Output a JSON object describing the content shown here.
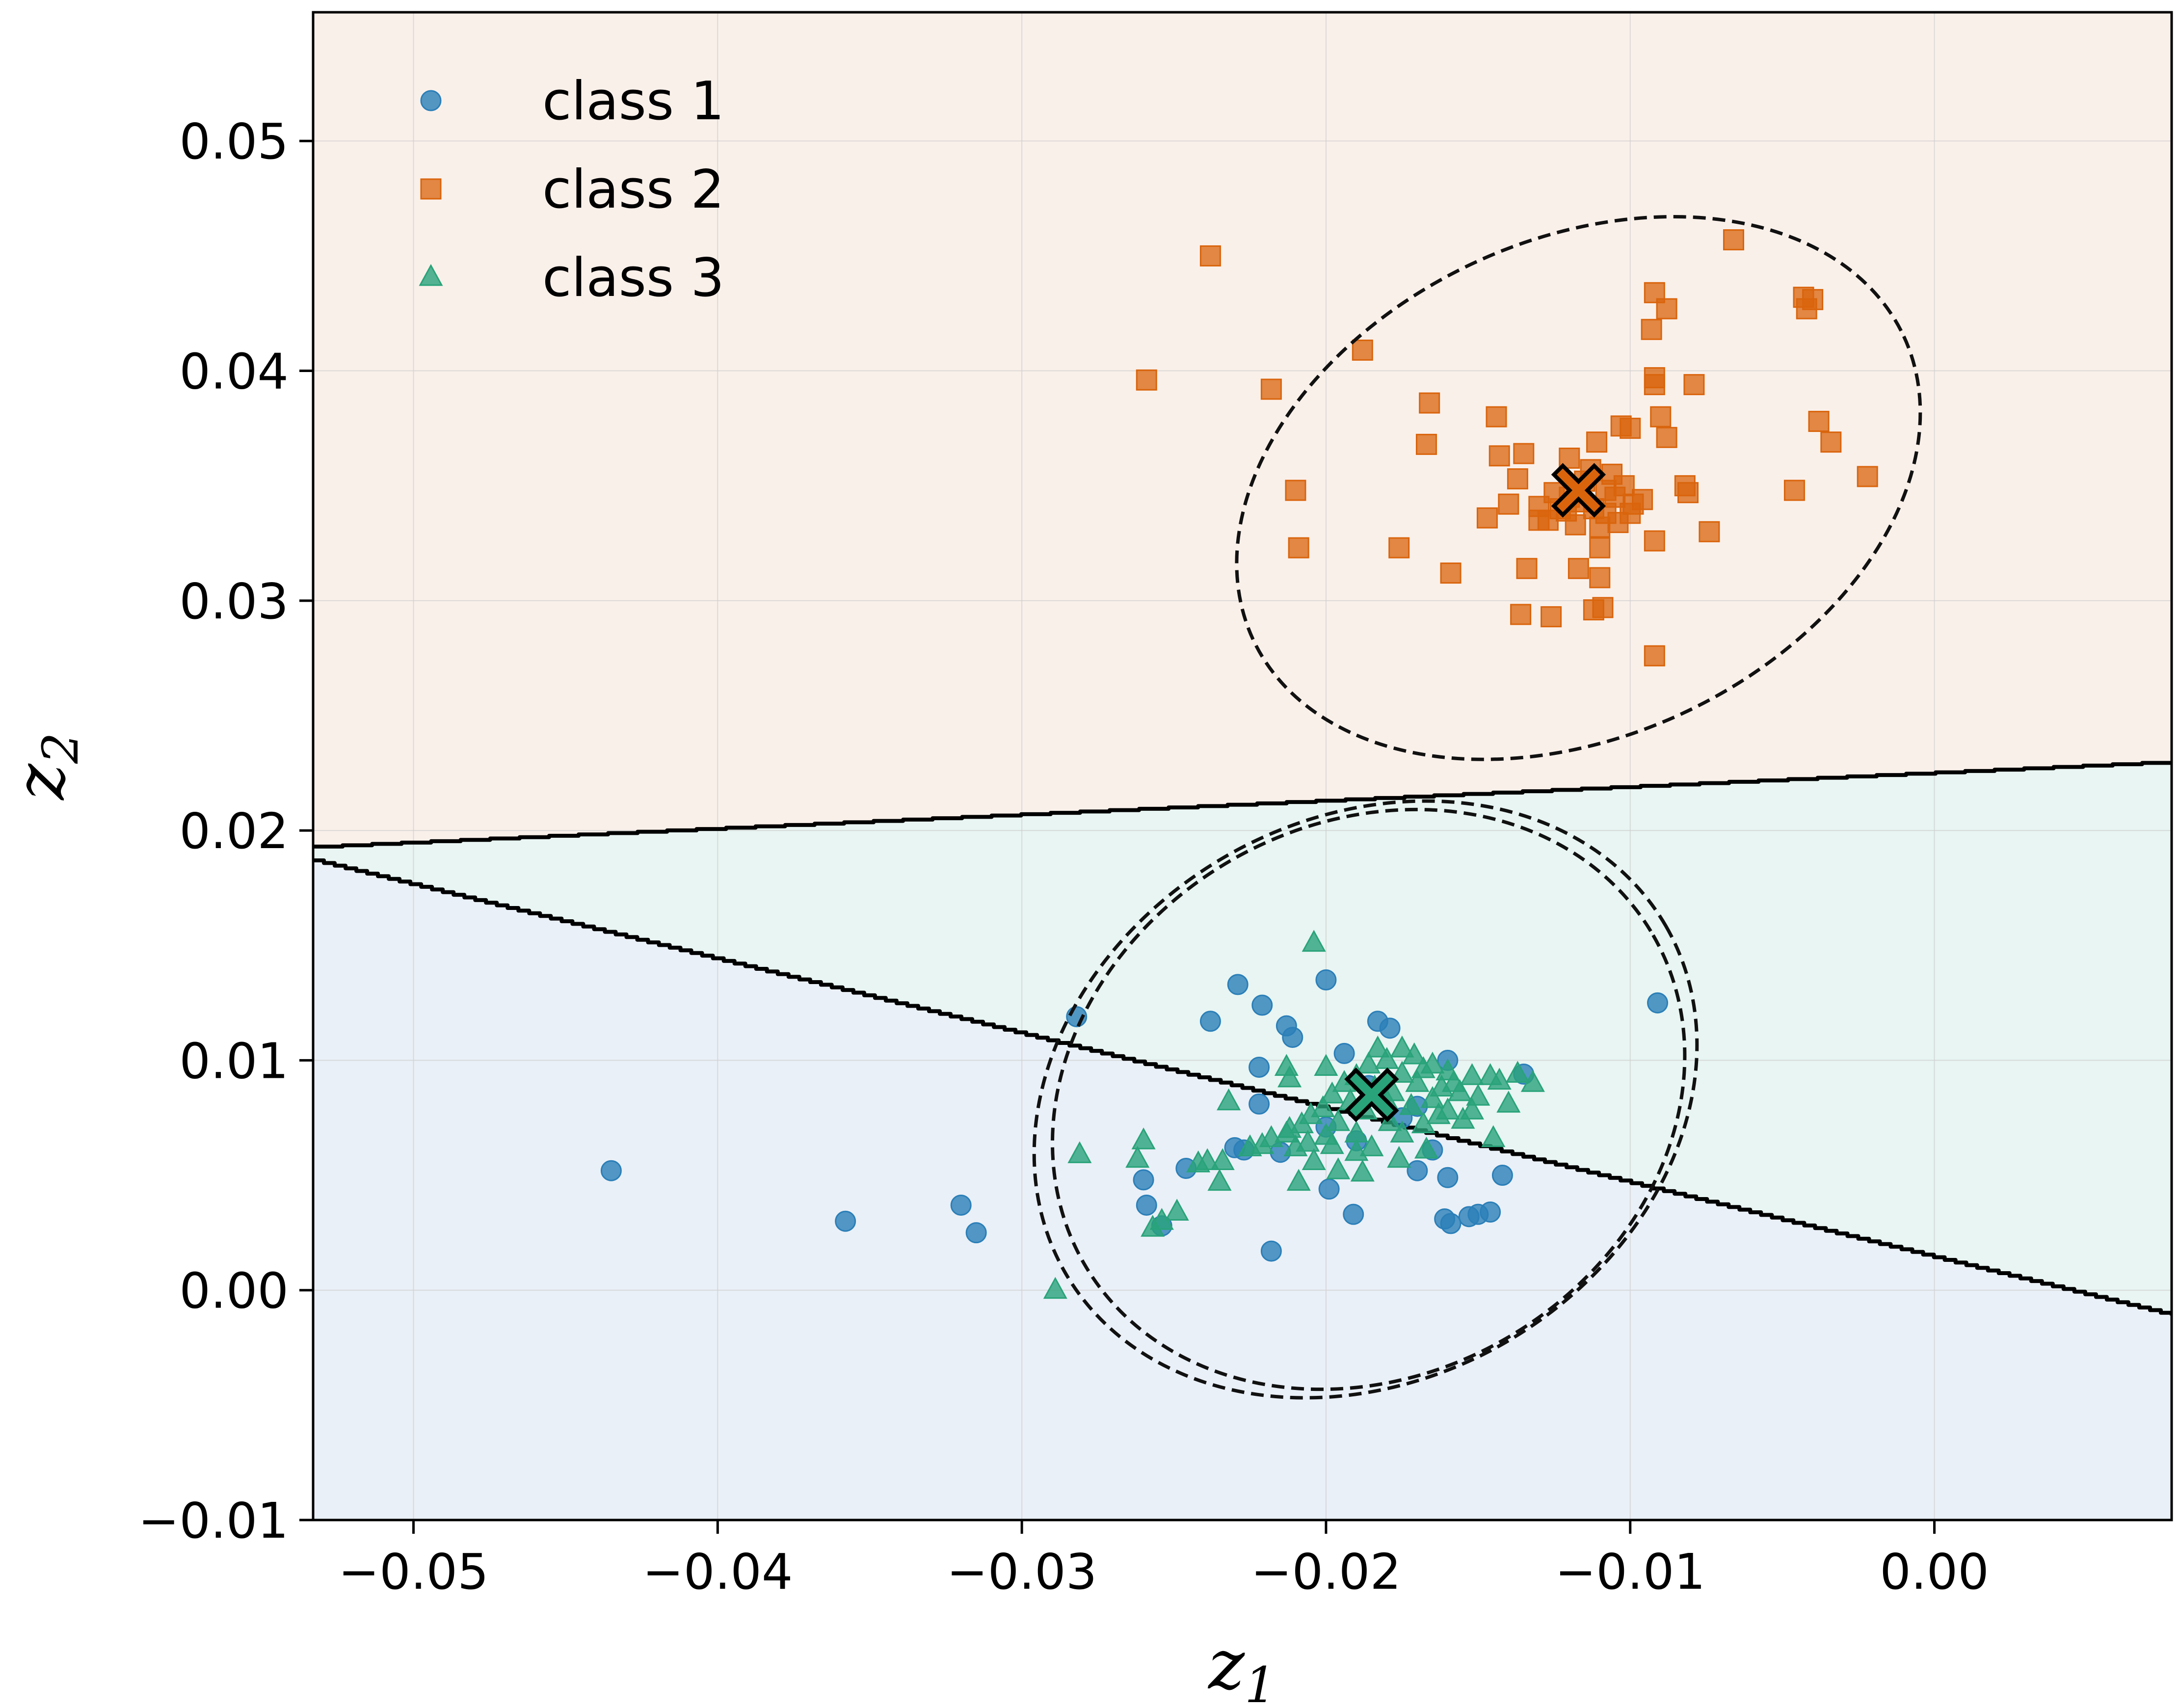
{
  "chart_data": {
    "type": "scatter",
    "title": "",
    "xlabel": {
      "base": "z",
      "sub": "1"
    },
    "ylabel": {
      "base": "z",
      "sub": "2"
    },
    "xlim": [
      -0.0533,
      0.0078
    ],
    "ylim": [
      -0.01,
      0.0556
    ],
    "xticks": [
      -0.05,
      -0.04,
      -0.03,
      -0.02,
      -0.01,
      0.0
    ],
    "xtick_labels": [
      "−0.05",
      "−0.04",
      "−0.03",
      "−0.02",
      "−0.01",
      "0.00"
    ],
    "yticks": [
      -0.01,
      0.0,
      0.01,
      0.02,
      0.03,
      0.04,
      0.05
    ],
    "ytick_labels": [
      "−0.01",
      "0.00",
      "0.01",
      "0.02",
      "0.03",
      "0.04",
      "0.05"
    ],
    "grid": true,
    "legend_position": "top-left",
    "colors": {
      "class1": "#2b7fb8",
      "class2": "#d9640c",
      "class3": "#29a37a",
      "region_class1": "#eaf0f7",
      "region_class2": "#faf0ea",
      "region_class3": "#e8f5f2",
      "boundary": "#000000"
    },
    "decision_regions": {
      "upper_boundary": {
        "x": [
          -0.0533,
          0.0078
        ],
        "y": [
          0.0193,
          0.023
        ]
      },
      "lower_boundary": {
        "x": [
          -0.0533,
          0.0078
        ],
        "y": [
          0.0187,
          -0.0011
        ]
      },
      "above_upper": "class 2",
      "between": "class 3",
      "below_lower": "class 1"
    },
    "ellipses": [
      {
        "class": "class 2",
        "cx": -0.0117,
        "cy": 0.0349,
        "rx": 0.0118,
        "ry": 0.0108,
        "angle_deg": -25
      },
      {
        "class": "class 1",
        "cx": -0.0187,
        "cy": 0.0083,
        "rx": 0.0114,
        "ry": 0.0122,
        "angle_deg": -30
      },
      {
        "class": "class 3",
        "cx": -0.0186,
        "cy": 0.0083,
        "rx": 0.0108,
        "ry": 0.012,
        "angle_deg": -30
      }
    ],
    "centroids": [
      {
        "class": "class 2",
        "x": -0.0117,
        "y": 0.0348
      },
      {
        "class": "class 3",
        "x": -0.0185,
        "y": 0.0085
      }
    ],
    "series": [
      {
        "name": "class 1",
        "marker": "circle",
        "points": [
          [
            -0.0435,
            0.0052
          ],
          [
            -0.0358,
            0.003
          ],
          [
            -0.032,
            0.0037
          ],
          [
            -0.0315,
            0.0025
          ],
          [
            -0.0282,
            0.0119
          ],
          [
            -0.026,
            0.0048
          ],
          [
            -0.0259,
            0.0037
          ],
          [
            -0.0254,
            0.0028
          ],
          [
            -0.0246,
            0.0053
          ],
          [
            -0.0238,
            0.0117
          ],
          [
            -0.0229,
            0.0133
          ],
          [
            -0.0221,
            0.0124
          ],
          [
            -0.0213,
            0.0115
          ],
          [
            -0.0211,
            0.011
          ],
          [
            -0.02,
            0.0135
          ],
          [
            -0.0194,
            0.0103
          ],
          [
            -0.0183,
            0.0117
          ],
          [
            -0.0179,
            0.0114
          ],
          [
            -0.016,
            0.01
          ],
          [
            -0.0135,
            0.0094
          ],
          [
            -0.0091,
            0.0125
          ],
          [
            -0.0218,
            0.0017
          ],
          [
            -0.0191,
            0.0033
          ],
          [
            -0.0199,
            0.0044
          ],
          [
            -0.0161,
            0.0031
          ],
          [
            -0.0159,
            0.0029
          ],
          [
            -0.0153,
            0.0032
          ],
          [
            -0.015,
            0.0033
          ],
          [
            -0.0146,
            0.0034
          ],
          [
            -0.0142,
            0.005
          ],
          [
            -0.016,
            0.0049
          ],
          [
            -0.017,
            0.0052
          ],
          [
            -0.0165,
            0.0061
          ],
          [
            -0.0222,
            0.0097
          ],
          [
            -0.0222,
            0.0081
          ],
          [
            -0.023,
            0.0062
          ],
          [
            -0.0227,
            0.0061
          ],
          [
            -0.0215,
            0.006
          ],
          [
            -0.02,
            0.0071
          ],
          [
            -0.0175,
            0.0075
          ],
          [
            -0.0186,
            0.0089
          ],
          [
            -0.017,
            0.008
          ],
          [
            -0.019,
            0.0065
          ]
        ]
      },
      {
        "name": "class 2",
        "marker": "square",
        "points": [
          [
            -0.0238,
            0.045
          ],
          [
            -0.0259,
            0.0396
          ],
          [
            -0.0218,
            0.0392
          ],
          [
            -0.0188,
            0.0409
          ],
          [
            -0.0066,
            0.0457
          ],
          [
            -0.0092,
            0.0434
          ],
          [
            -0.0088,
            0.0427
          ],
          [
            -0.0093,
            0.0418
          ],
          [
            -0.0043,
            0.0432
          ],
          [
            -0.004,
            0.0431
          ],
          [
            -0.0042,
            0.0427
          ],
          [
            -0.0092,
            0.0397
          ],
          [
            -0.0092,
            0.0394
          ],
          [
            -0.0079,
            0.0394
          ],
          [
            -0.0166,
            0.0386
          ],
          [
            -0.0144,
            0.038
          ],
          [
            -0.009,
            0.038
          ],
          [
            -0.0038,
            0.0378
          ],
          [
            -0.0034,
            0.0369
          ],
          [
            -0.0103,
            0.0376
          ],
          [
            -0.01,
            0.0375
          ],
          [
            -0.0111,
            0.0369
          ],
          [
            -0.0088,
            0.0371
          ],
          [
            -0.0167,
            0.0368
          ],
          [
            -0.0135,
            0.0364
          ],
          [
            -0.0143,
            0.0363
          ],
          [
            -0.012,
            0.0362
          ],
          [
            -0.0137,
            0.0353
          ],
          [
            -0.021,
            0.0348
          ],
          [
            -0.0082,
            0.035
          ],
          [
            -0.0081,
            0.0347
          ],
          [
            -0.0046,
            0.0348
          ],
          [
            -0.0022,
            0.0354
          ],
          [
            -0.014,
            0.0342
          ],
          [
            -0.0096,
            0.0344
          ],
          [
            -0.0147,
            0.0336
          ],
          [
            -0.013,
            0.0335
          ],
          [
            -0.0074,
            0.033
          ],
          [
            -0.0209,
            0.0323
          ],
          [
            -0.0176,
            0.0323
          ],
          [
            -0.0092,
            0.0326
          ],
          [
            -0.0134,
            0.0314
          ],
          [
            -0.011,
            0.0323
          ],
          [
            -0.0117,
            0.0314
          ],
          [
            -0.0159,
            0.0312
          ],
          [
            -0.011,
            0.031
          ],
          [
            -0.0109,
            0.0297
          ],
          [
            -0.0112,
            0.0296
          ],
          [
            -0.0136,
            0.0294
          ],
          [
            -0.0126,
            0.0293
          ],
          [
            -0.0092,
            0.0276
          ],
          [
            -0.0127,
            0.0335
          ],
          [
            -0.0123,
            0.034
          ],
          [
            -0.012,
            0.0345
          ],
          [
            -0.0115,
            0.0352
          ],
          [
            -0.0112,
            0.034
          ],
          [
            -0.0108,
            0.0338
          ],
          [
            -0.0105,
            0.0345
          ],
          [
            -0.0102,
            0.035
          ],
          [
            -0.01,
            0.0338
          ],
          [
            -0.0106,
            0.0355
          ],
          [
            -0.0118,
            0.0333
          ],
          [
            -0.0125,
            0.0347
          ],
          [
            -0.011,
            0.0332
          ],
          [
            -0.0104,
            0.0334
          ],
          [
            -0.0099,
            0.0342
          ],
          [
            -0.0113,
            0.0357
          ],
          [
            -0.0121,
            0.0339
          ],
          [
            -0.0117,
            0.0343
          ],
          [
            -0.0108,
            0.0348
          ],
          [
            -0.013,
            0.0341
          ]
        ]
      },
      {
        "name": "class 3",
        "marker": "triangle",
        "points": [
          [
            -0.0204,
            0.0151
          ],
          [
            -0.0289,
            0.0
          ],
          [
            -0.0281,
            0.0059
          ],
          [
            -0.0262,
            0.0057
          ],
          [
            -0.026,
            0.0065
          ],
          [
            -0.0257,
            0.0027
          ],
          [
            -0.0254,
            0.003
          ],
          [
            -0.0249,
            0.0034
          ],
          [
            -0.0239,
            0.0056
          ],
          [
            -0.0235,
            0.0047
          ],
          [
            -0.0234,
            0.0056
          ],
          [
            -0.0232,
            0.0082
          ],
          [
            -0.0213,
            0.0097
          ],
          [
            -0.0212,
            0.0092
          ],
          [
            -0.0198,
            0.0063
          ],
          [
            -0.02,
            0.0097
          ],
          [
            -0.0188,
            0.0051
          ],
          [
            -0.019,
            0.006
          ],
          [
            -0.0176,
            0.0057
          ],
          [
            -0.0167,
            0.0061
          ],
          [
            -0.0155,
            0.0074
          ],
          [
            -0.0145,
            0.0066
          ],
          [
            -0.0132,
            0.009
          ],
          [
            -0.014,
            0.0081
          ],
          [
            -0.0146,
            0.0093
          ],
          [
            -0.0152,
            0.0093
          ],
          [
            -0.016,
            0.0095
          ],
          [
            -0.0165,
            0.0098
          ],
          [
            -0.0171,
            0.0102
          ],
          [
            -0.0175,
            0.0105
          ],
          [
            -0.018,
            0.01
          ],
          [
            -0.0183,
            0.0105
          ],
          [
            -0.0186,
            0.0098
          ],
          [
            -0.019,
            0.0093
          ],
          [
            -0.0194,
            0.009
          ],
          [
            -0.0198,
            0.0085
          ],
          [
            -0.0201,
            0.0079
          ],
          [
            -0.0205,
            0.0076
          ],
          [
            -0.0208,
            0.0072
          ],
          [
            -0.0213,
            0.0068
          ],
          [
            -0.0218,
            0.0066
          ],
          [
            -0.0221,
            0.0063
          ],
          [
            -0.0225,
            0.0062
          ],
          [
            -0.021,
            0.0062
          ],
          [
            -0.0204,
            0.0056
          ],
          [
            -0.0196,
            0.0052
          ],
          [
            -0.0185,
            0.0062
          ],
          [
            -0.0175,
            0.0068
          ],
          [
            -0.0168,
            0.0072
          ],
          [
            -0.016,
            0.0078
          ],
          [
            -0.0156,
            0.0086
          ],
          [
            -0.0162,
            0.0088
          ],
          [
            -0.017,
            0.009
          ],
          [
            -0.0178,
            0.0086
          ],
          [
            -0.0172,
            0.008
          ],
          [
            -0.0165,
            0.0083
          ],
          [
            -0.0158,
            0.009
          ],
          [
            -0.015,
            0.0084
          ],
          [
            -0.0175,
            0.0094
          ],
          [
            -0.0168,
            0.0096
          ],
          [
            -0.0184,
            0.0088
          ],
          [
            -0.0192,
            0.0082
          ],
          [
            -0.0196,
            0.0073
          ],
          [
            -0.0187,
            0.0078
          ],
          [
            -0.018,
            0.0082
          ],
          [
            -0.02,
            0.0067
          ],
          [
            -0.0212,
            0.007
          ],
          [
            -0.0206,
            0.0064
          ],
          [
            -0.0179,
            0.0073
          ],
          [
            -0.0163,
            0.0076
          ],
          [
            -0.0152,
            0.0078
          ],
          [
            -0.0143,
            0.0091
          ],
          [
            -0.0137,
            0.0094
          ],
          [
            -0.019,
            0.0068
          ],
          [
            -0.0209,
            0.0047
          ],
          [
            -0.0242,
            0.0055
          ]
        ]
      }
    ]
  },
  "legend": {
    "items": [
      {
        "label": "class 1",
        "color": "#2b7fb8",
        "marker": "circle"
      },
      {
        "label": "class 2",
        "color": "#d9640c",
        "marker": "square"
      },
      {
        "label": "class 3",
        "color": "#29a37a",
        "marker": "triangle"
      }
    ]
  }
}
